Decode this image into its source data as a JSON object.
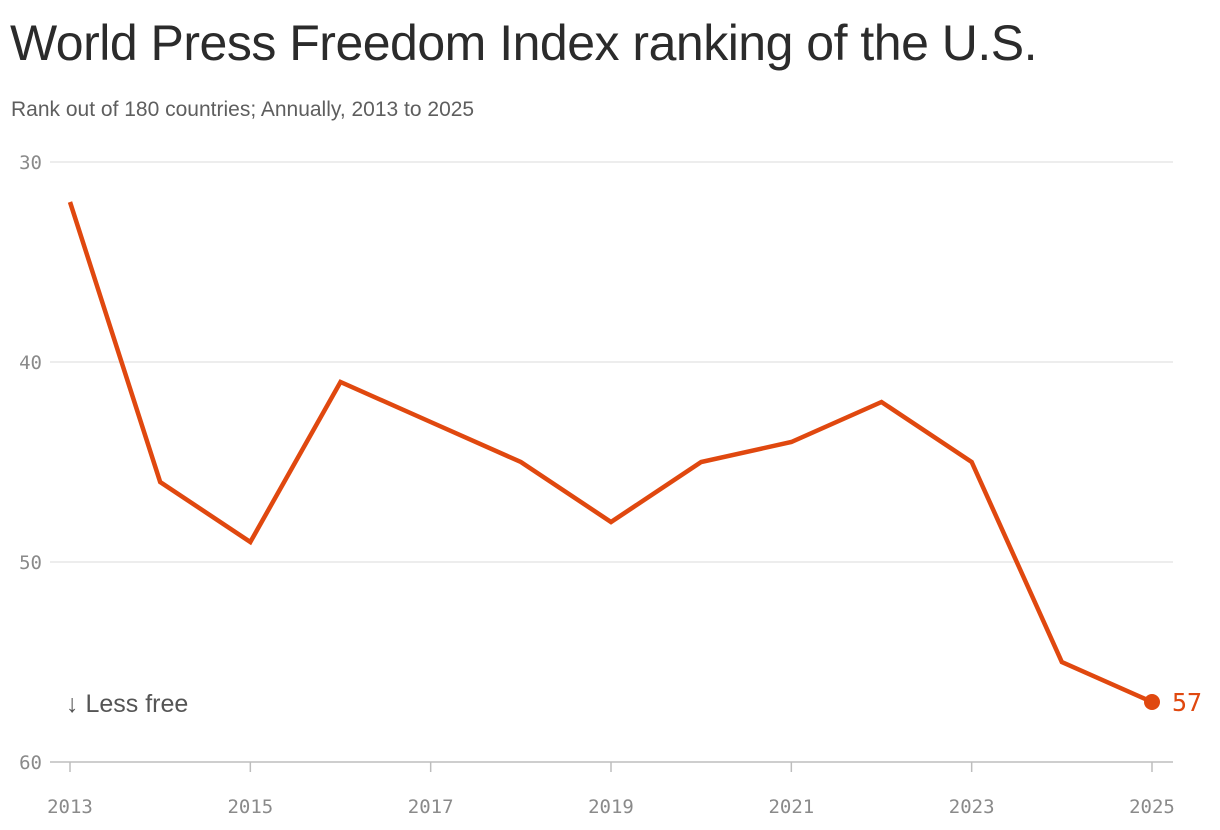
{
  "header": {
    "title": "World Press Freedom Index ranking of the U.S.",
    "subtitle": "Rank out of 180 countries; Annually, 2013 to 2025"
  },
  "chart_data": {
    "type": "line",
    "title": "World Press Freedom Index ranking of the U.S.",
    "subtitle": "Rank out of 180 countries; Annually, 2013 to 2025",
    "x": [
      2013,
      2014,
      2015,
      2016,
      2017,
      2018,
      2019,
      2020,
      2021,
      2022,
      2023,
      2024,
      2025
    ],
    "series": [
      {
        "name": "",
        "values": [
          32,
          46,
          49,
          41,
          43,
          45,
          48,
          45,
          44,
          42,
          45,
          55,
          57
        ],
        "color": "#e0480f"
      }
    ],
    "x_ticks": [
      "2013",
      "2015",
      "2017",
      "2019",
      "2021",
      "2023",
      "2025"
    ],
    "y_ticks": [
      "30",
      "40",
      "50",
      "60"
    ],
    "ylim": [
      30,
      60
    ],
    "y_inverted": true,
    "xlim": [
      2013,
      2025
    ],
    "grid": "horizontal",
    "annotation": "↓ Less free",
    "end_label": "57",
    "colors": {
      "line": "#e0480f",
      "grid": "#e2e2e2",
      "axis": "#bdbdbd",
      "tick_text": "#8a8a8a"
    }
  }
}
